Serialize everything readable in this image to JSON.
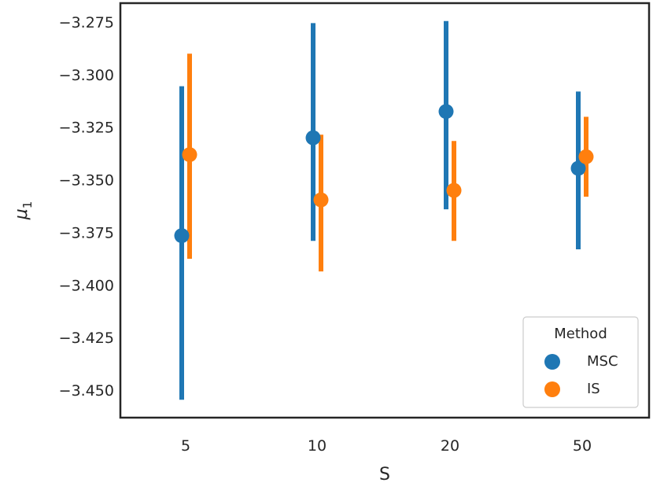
{
  "chart_data": {
    "type": "pointplot",
    "categories": [
      "5",
      "10",
      "20",
      "50"
    ],
    "xlabel": "S",
    "ylabel_base": "μ",
    "ylabel_sub": "1",
    "ylim": [
      -3.4625,
      -3.2655
    ],
    "yticks": [
      -3.275,
      -3.3,
      -3.325,
      -3.35,
      -3.375,
      -3.4,
      -3.425,
      -3.45
    ],
    "ytick_labels": [
      "−3.275",
      "−3.300",
      "−3.325",
      "−3.350",
      "−3.375",
      "−3.400",
      "−3.425",
      "−3.450"
    ],
    "legend": {
      "title": "Method",
      "placement": "lower right"
    },
    "series": [
      {
        "name": "MSC",
        "color": "#1f77b4",
        "values": [
          -3.376,
          -3.3295,
          -3.317,
          -3.344
        ],
        "err_low": [
          -3.454,
          -3.3785,
          -3.3635,
          -3.3825
        ],
        "err_high": [
          -3.305,
          -3.275,
          -3.274,
          -3.3075
        ]
      },
      {
        "name": "IS",
        "color": "#ff7f0e",
        "values": [
          -3.3375,
          -3.359,
          -3.3545,
          -3.3385
        ],
        "err_low": [
          -3.387,
          -3.393,
          -3.3785,
          -3.3575
        ],
        "err_high": [
          -3.2895,
          -3.328,
          -3.331,
          -3.3195
        ]
      }
    ]
  }
}
